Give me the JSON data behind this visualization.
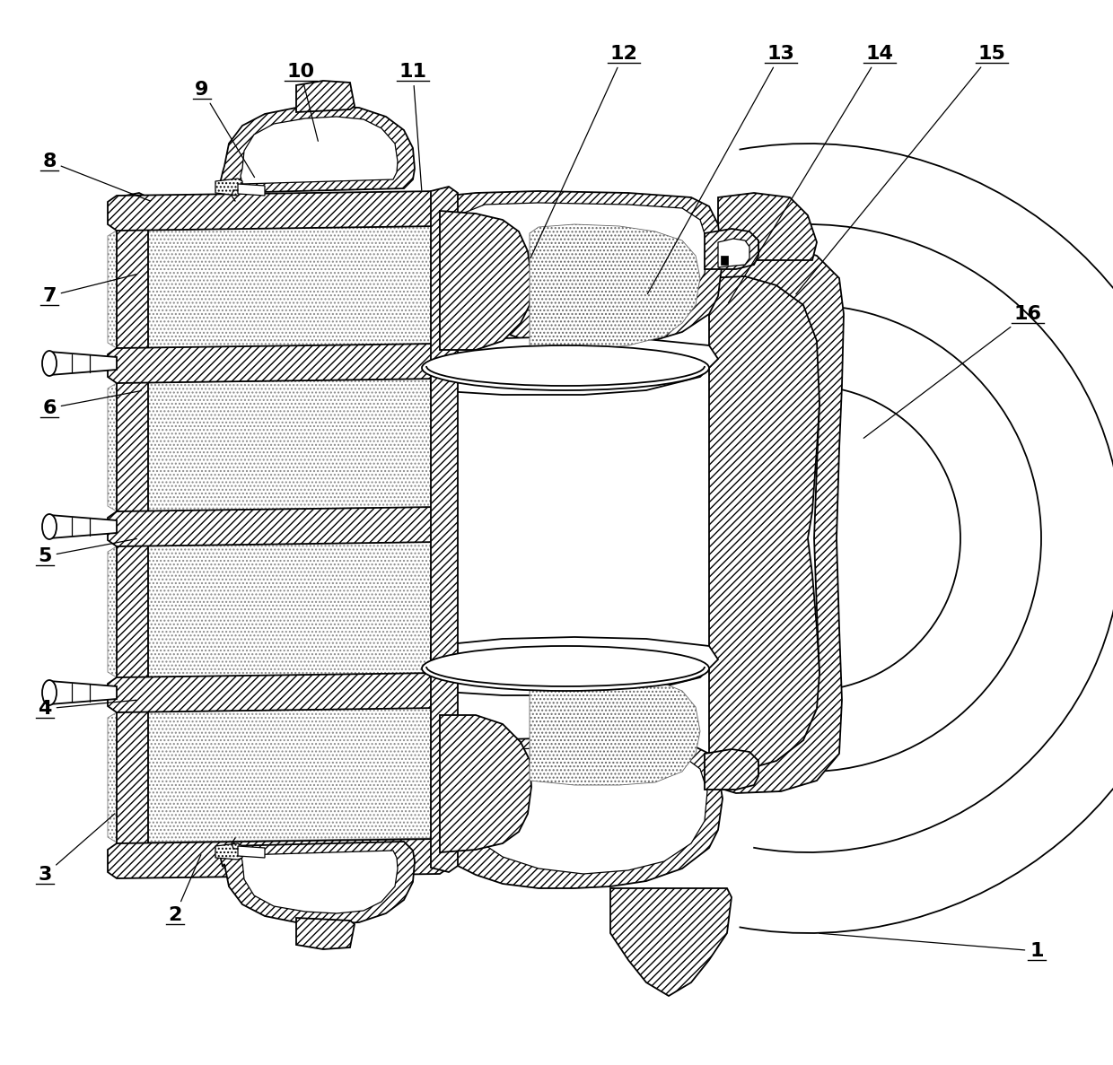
{
  "fig_width": 12.4,
  "fig_height": 11.87,
  "background": "#ffffff",
  "line_color": "#000000",
  "hatch_metal": "////",
  "hatch_coil": "....",
  "lw_thick": 1.8,
  "lw_med": 1.3,
  "lw_thin": 0.9,
  "labels": [
    [
      "1",
      1155,
      1060,
      910,
      1040
    ],
    [
      "2",
      195,
      1020,
      225,
      950
    ],
    [
      "3",
      50,
      975,
      130,
      905
    ],
    [
      "4",
      50,
      790,
      155,
      780
    ],
    [
      "5",
      50,
      620,
      155,
      600
    ],
    [
      "6",
      55,
      455,
      160,
      435
    ],
    [
      "7",
      55,
      330,
      155,
      305
    ],
    [
      "8",
      55,
      180,
      170,
      225
    ],
    [
      "9",
      225,
      100,
      285,
      200
    ],
    [
      "10",
      335,
      80,
      355,
      160
    ],
    [
      "11",
      460,
      80,
      470,
      215
    ],
    [
      "12",
      695,
      60,
      590,
      290
    ],
    [
      "13",
      870,
      60,
      720,
      330
    ],
    [
      "14",
      980,
      60,
      810,
      340
    ],
    [
      "15",
      1105,
      60,
      885,
      330
    ],
    [
      "16",
      1145,
      350,
      960,
      490
    ]
  ]
}
